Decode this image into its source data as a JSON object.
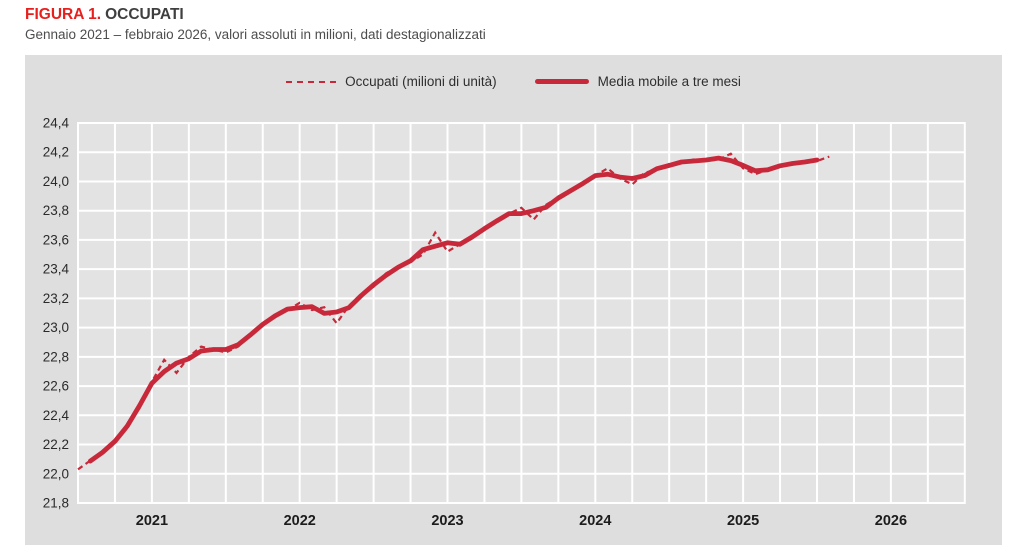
{
  "figure": {
    "label": "FIGURA 1.",
    "title": "OCCUPATI",
    "subtitle": "Gennaio 2021 – febbraio 2026, valori assoluti in milioni, dati destagionalizzati"
  },
  "legend": {
    "items": [
      {
        "label": "Occupati (milioni di unità)",
        "style": "dashed"
      },
      {
        "label": "Media mobile a tre mesi",
        "style": "solid"
      }
    ],
    "position": "top-center"
  },
  "colors": {
    "title_red": "#e8201d",
    "series_red": "#c8293a",
    "panel_bg": "#dedede",
    "plot_bg": "#e3e3e3",
    "grid": "#ffffff",
    "tick_text": "#2b2b2b"
  },
  "chart_data": {
    "type": "line",
    "title": "FIGURA 1. OCCUPATI",
    "subtitle": "Gennaio 2021 – febbraio 2026, valori assoluti in milioni, dati destagionalizzati",
    "x_unit": "month",
    "data_start": "2021-01",
    "data_end": "2026-02",
    "x_axis_span_months": 72,
    "x_tick_labels": [
      "2021",
      "2022",
      "2023",
      "2024",
      "2025",
      "2026"
    ],
    "ylim": [
      21.8,
      24.4
    ],
    "y_tick_step": 0.2,
    "y_tick_labels_top_to_bottom": [
      "24,4",
      "24,2",
      "24,0",
      "23,8",
      "23,6",
      "23,4",
      "23,2",
      "23,0",
      "22,8",
      "22,6",
      "22,4",
      "22,2",
      "22,0",
      "21,8"
    ],
    "grid": {
      "vertical": "quarterly",
      "horizontal_step": 0.2,
      "on": true,
      "color": "#ffffff"
    },
    "legend_position": "top-center",
    "series": [
      {
        "name": "Occupati (milioni di unità)",
        "style": "dashed",
        "color": "#c8293a",
        "start_month": "2021-01",
        "start_index": 0,
        "values": [
          22.03,
          22.09,
          22.14,
          22.21,
          22.32,
          22.45,
          22.63,
          22.78,
          22.69,
          22.8,
          22.87,
          22.85,
          22.83,
          22.87,
          22.95,
          23.03,
          23.09,
          23.12,
          23.17,
          23.12,
          23.14,
          23.03,
          23.15,
          23.23,
          23.28,
          23.37,
          23.42,
          23.45,
          23.5,
          23.65,
          23.52,
          23.57,
          23.62,
          23.67,
          23.74,
          23.78,
          23.82,
          23.74,
          23.84,
          23.89,
          23.93,
          23.99,
          24.04,
          24.09,
          24.02,
          23.98,
          24.06,
          24.08,
          24.12,
          24.13,
          24.15,
          24.14,
          24.15,
          24.19,
          24.09,
          24.05,
          24.08,
          24.11,
          24.13,
          24.13,
          24.14,
          24.17
        ]
      },
      {
        "name": "Media mobile a tre mesi",
        "style": "solid",
        "color": "#c8293a",
        "derived": "centered 3-month moving average of Occupati",
        "start_month": "2021-02",
        "start_index": 1,
        "values": [
          22.087,
          22.147,
          22.223,
          22.327,
          22.467,
          22.62,
          22.7,
          22.757,
          22.787,
          22.84,
          22.85,
          22.85,
          22.883,
          22.95,
          23.023,
          23.08,
          23.127,
          23.137,
          23.143,
          23.097,
          23.107,
          23.137,
          23.22,
          23.293,
          23.357,
          23.413,
          23.457,
          23.533,
          23.557,
          23.58,
          23.57,
          23.62,
          23.677,
          23.73,
          23.78,
          23.78,
          23.8,
          23.823,
          23.887,
          23.937,
          23.987,
          24.04,
          24.05,
          24.03,
          24.02,
          24.04,
          24.087,
          24.11,
          24.133,
          24.14,
          24.147,
          24.16,
          24.143,
          24.11,
          24.073,
          24.08,
          24.107,
          24.123,
          24.133,
          24.147
        ]
      }
    ]
  }
}
